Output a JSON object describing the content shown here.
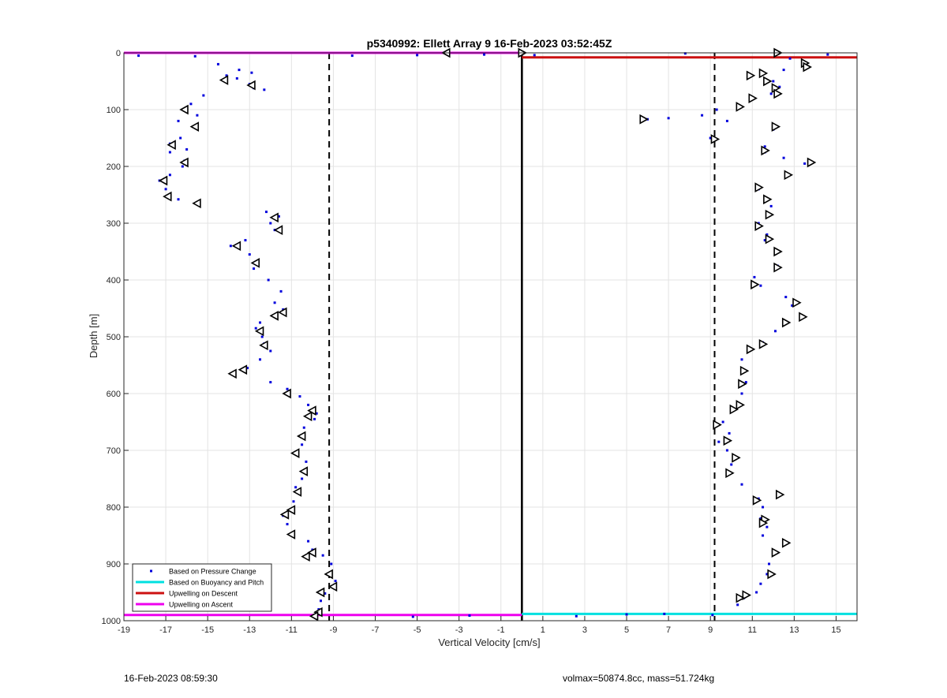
{
  "footer": {
    "left": "16-Feb-2023 08:59:30",
    "right": "volmax=50874.8cc, mass=51.724kg"
  },
  "colors": {
    "pressure": "#0000dd",
    "buoyancy": "#00e0e0",
    "descent": "#cc1111",
    "ascent": "#ee00ee",
    "grid": "#e3e3e3",
    "axis": "#262626"
  },
  "chart_data": {
    "type": "scatter",
    "title": "p5340992: Ellett Array 9 16-Feb-2023 03:52:45Z",
    "xlabel": "Vertical Velocity [cm/s]",
    "ylabel": "Depth [m]",
    "xlim": [
      -19,
      16
    ],
    "ylim": [
      0,
      1000
    ],
    "y_reversed": true,
    "grid": true,
    "x_ticks": [
      -19,
      -17,
      -15,
      -13,
      -11,
      -9,
      -7,
      -5,
      -3,
      -1,
      1,
      3,
      5,
      7,
      9,
      11,
      13,
      15
    ],
    "y_ticks": [
      0,
      100,
      200,
      300,
      400,
      500,
      600,
      700,
      800,
      900,
      1000
    ],
    "legend": {
      "placement": "bottom-left",
      "entries": [
        {
          "label": "Based on Pressure Change",
          "color": "#0000dd",
          "style": "dot"
        },
        {
          "label": "Based on Buoyancy and Pitch",
          "color": "#00e0e0",
          "style": "line"
        },
        {
          "label": "Upwelling on Descent",
          "color": "#cc1111",
          "style": "line"
        },
        {
          "label": "Upwelling on Ascent",
          "color": "#ee00ee",
          "style": "line"
        }
      ]
    },
    "reference_lines": [
      {
        "x": -9.2,
        "style": "dashed"
      },
      {
        "x": 9.2,
        "style": "dashed"
      },
      {
        "x": 0,
        "style": "solid"
      }
    ],
    "upwelling_lines": [
      {
        "name": "Upwelling on Ascent",
        "depth": 0,
        "x": [
          -19,
          0
        ]
      },
      {
        "name": "Upwelling on Descent",
        "depth": 8,
        "x": [
          0,
          16
        ]
      },
      {
        "name": "Upwelling on Ascent",
        "depth": 990,
        "x": [
          -19,
          0
        ]
      },
      {
        "name": "Based on Buoyancy and Pitch",
        "depth": 988,
        "x": [
          0,
          16
        ]
      }
    ],
    "series": [
      {
        "name": "Based on Pressure Change",
        "points": [
          [
            -14.1,
            40
          ],
          [
            -14.2,
            50
          ],
          [
            -13.5,
            30
          ],
          [
            -13.0,
            55
          ],
          [
            -12.8,
            62
          ],
          [
            -13.6,
            45
          ],
          [
            -14.5,
            20
          ],
          [
            -12.3,
            65
          ],
          [
            -12.9,
            35
          ],
          [
            -15.2,
            75
          ],
          [
            -15.8,
            90
          ],
          [
            -16.0,
            100
          ],
          [
            -15.5,
            110
          ],
          [
            -16.4,
            120
          ],
          [
            -15.6,
            130
          ],
          [
            -16.3,
            150
          ],
          [
            -16.8,
            160
          ],
          [
            -16.0,
            170
          ],
          [
            -16.8,
            175
          ],
          [
            -16.1,
            190
          ],
          [
            -16.2,
            200
          ],
          [
            -16.8,
            215
          ],
          [
            -17.3,
            225
          ],
          [
            -17.0,
            240
          ],
          [
            -16.9,
            252
          ],
          [
            -16.4,
            258
          ],
          [
            -15.5,
            265
          ],
          [
            -12.2,
            280
          ],
          [
            -11.6,
            288
          ],
          [
            -12.0,
            300
          ],
          [
            -11.8,
            312
          ],
          [
            -13.2,
            330
          ],
          [
            -13.9,
            340
          ],
          [
            -13.0,
            355
          ],
          [
            -12.7,
            368
          ],
          [
            -12.8,
            380
          ],
          [
            -12.1,
            400
          ],
          [
            -11.5,
            420
          ],
          [
            -11.8,
            440
          ],
          [
            -11.4,
            452
          ],
          [
            -11.8,
            462
          ],
          [
            -12.5,
            475
          ],
          [
            -12.7,
            485
          ],
          [
            -12.4,
            500
          ],
          [
            -12.3,
            512
          ],
          [
            -12.0,
            525
          ],
          [
            -12.5,
            540
          ],
          [
            -13.1,
            555
          ],
          [
            -13.7,
            565
          ],
          [
            -12.0,
            580
          ],
          [
            -11.2,
            592
          ],
          [
            -10.6,
            605
          ],
          [
            -10.2,
            620
          ],
          [
            -9.8,
            635
          ],
          [
            -9.9,
            645
          ],
          [
            -10.4,
            660
          ],
          [
            -10.5,
            675
          ],
          [
            -10.5,
            690
          ],
          [
            -10.7,
            705
          ],
          [
            -10.3,
            720
          ],
          [
            -10.3,
            735
          ],
          [
            -10.5,
            750
          ],
          [
            -10.8,
            765
          ],
          [
            -10.6,
            775
          ],
          [
            -10.9,
            790
          ],
          [
            -11.0,
            805
          ],
          [
            -11.4,
            815
          ],
          [
            -11.2,
            830
          ],
          [
            -10.9,
            845
          ],
          [
            -10.2,
            860
          ],
          [
            -10.0,
            875
          ],
          [
            -9.5,
            885
          ],
          [
            -9.1,
            900
          ],
          [
            -9.1,
            915
          ],
          [
            -8.9,
            930
          ],
          [
            -9.0,
            940
          ],
          [
            -9.4,
            952
          ],
          [
            -9.6,
            965
          ],
          [
            -9.7,
            980
          ],
          [
            -9.8,
            990
          ],
          [
            12.8,
            10
          ],
          [
            13.6,
            18
          ],
          [
            12.5,
            30
          ],
          [
            11.4,
            38
          ],
          [
            12.0,
            50
          ],
          [
            12.3,
            60
          ],
          [
            11.9,
            72
          ],
          [
            11.0,
            82
          ],
          [
            10.4,
            95
          ],
          [
            9.3,
            100
          ],
          [
            8.6,
            110
          ],
          [
            7.0,
            115
          ],
          [
            6.0,
            117
          ],
          [
            9.8,
            120
          ],
          [
            9.0,
            150
          ],
          [
            12.0,
            135
          ],
          [
            11.6,
            165
          ],
          [
            11.6,
            175
          ],
          [
            12.5,
            185
          ],
          [
            13.5,
            195
          ],
          [
            12.6,
            215
          ],
          [
            11.3,
            240
          ],
          [
            11.6,
            255
          ],
          [
            11.9,
            270
          ],
          [
            11.8,
            285
          ],
          [
            11.3,
            300
          ],
          [
            11.7,
            320
          ],
          [
            11.6,
            330
          ],
          [
            12.1,
            350
          ],
          [
            12.2,
            375
          ],
          [
            11.1,
            395
          ],
          [
            11.4,
            410
          ],
          [
            12.6,
            430
          ],
          [
            12.9,
            445
          ],
          [
            13.3,
            462
          ],
          [
            12.6,
            475
          ],
          [
            12.1,
            490
          ],
          [
            11.5,
            510
          ],
          [
            10.8,
            520
          ],
          [
            10.5,
            540
          ],
          [
            10.6,
            560
          ],
          [
            10.7,
            580
          ],
          [
            10.5,
            600
          ],
          [
            10.0,
            625
          ],
          [
            9.6,
            650
          ],
          [
            9.9,
            670
          ],
          [
            9.4,
            685
          ],
          [
            9.8,
            700
          ],
          [
            10.2,
            715
          ],
          [
            10.0,
            725
          ],
          [
            9.9,
            740
          ],
          [
            10.5,
            760
          ],
          [
            11.3,
            785
          ],
          [
            11.5,
            800
          ],
          [
            11.4,
            820
          ],
          [
            11.7,
            835
          ],
          [
            11.5,
            850
          ],
          [
            12.6,
            865
          ],
          [
            12.2,
            880
          ],
          [
            11.8,
            900
          ],
          [
            11.7,
            918
          ],
          [
            11.4,
            935
          ],
          [
            11.2,
            950
          ],
          [
            10.6,
            960
          ],
          [
            10.3,
            972
          ],
          [
            -18.3,
            5
          ],
          [
            -15.6,
            6
          ],
          [
            -8.1,
            5
          ],
          [
            -5.0,
            4
          ],
          [
            -1.8,
            3
          ],
          [
            0.6,
            4
          ],
          [
            7.8,
            1
          ],
          [
            14.6,
            3
          ],
          [
            -5.2,
            993
          ],
          [
            -2.5,
            991
          ],
          [
            2.6,
            992
          ],
          [
            5.0,
            989
          ],
          [
            6.8,
            988
          ],
          [
            9.1,
            990
          ]
        ]
      },
      {
        "name": "Averaged velocity markers",
        "points": [
          [
            -14.2,
            48
          ],
          [
            -12.9,
            57
          ],
          [
            -16.1,
            100
          ],
          [
            -15.6,
            130
          ],
          [
            -16.7,
            162
          ],
          [
            -16.1,
            193
          ],
          [
            -17.1,
            225
          ],
          [
            -16.9,
            253
          ],
          [
            -15.5,
            265
          ],
          [
            -11.8,
            290
          ],
          [
            -11.6,
            312
          ],
          [
            -13.6,
            340
          ],
          [
            -12.7,
            370
          ],
          [
            -11.4,
            457
          ],
          [
            -11.8,
            463
          ],
          [
            -12.5,
            490
          ],
          [
            -12.3,
            515
          ],
          [
            -13.3,
            558
          ],
          [
            -13.8,
            565
          ],
          [
            -11.2,
            600
          ],
          [
            -10.0,
            630
          ],
          [
            -10.2,
            640
          ],
          [
            -10.5,
            675
          ],
          [
            -10.8,
            705
          ],
          [
            -10.4,
            737
          ],
          [
            -10.7,
            773
          ],
          [
            -11.0,
            805
          ],
          [
            -11.3,
            813
          ],
          [
            -11.0,
            848
          ],
          [
            -10.0,
            880
          ],
          [
            -10.3,
            887
          ],
          [
            -9.2,
            918
          ],
          [
            -9.0,
            940
          ],
          [
            -9.6,
            950
          ],
          [
            -9.7,
            985
          ],
          [
            -9.9,
            992
          ],
          [
            -3.6,
            0
          ],
          [
            0.0,
            -1
          ],
          [
            12.2,
            0
          ],
          [
            13.5,
            18
          ],
          [
            13.6,
            25
          ],
          [
            10.9,
            40
          ],
          [
            11.5,
            36
          ],
          [
            11.7,
            50
          ],
          [
            12.1,
            62
          ],
          [
            12.2,
            72
          ],
          [
            11.0,
            80
          ],
          [
            10.4,
            95
          ],
          [
            5.8,
            117
          ],
          [
            12.1,
            130
          ],
          [
            9.2,
            152
          ],
          [
            11.6,
            172
          ],
          [
            13.8,
            193
          ],
          [
            12.7,
            215
          ],
          [
            11.3,
            237
          ],
          [
            11.7,
            258
          ],
          [
            11.8,
            285
          ],
          [
            11.3,
            305
          ],
          [
            11.8,
            328
          ],
          [
            12.2,
            350
          ],
          [
            12.2,
            378
          ],
          [
            11.1,
            408
          ],
          [
            13.1,
            440
          ],
          [
            13.4,
            465
          ],
          [
            12.6,
            475
          ],
          [
            11.5,
            513
          ],
          [
            10.9,
            522
          ],
          [
            10.6,
            560
          ],
          [
            10.5,
            583
          ],
          [
            10.4,
            620
          ],
          [
            10.1,
            628
          ],
          [
            9.3,
            655
          ],
          [
            9.8,
            683
          ],
          [
            10.2,
            713
          ],
          [
            9.9,
            740
          ],
          [
            11.2,
            788
          ],
          [
            12.3,
            778
          ],
          [
            11.6,
            822
          ],
          [
            11.5,
            828
          ],
          [
            12.6,
            863
          ],
          [
            12.1,
            880
          ],
          [
            11.9,
            918
          ],
          [
            10.7,
            955
          ],
          [
            10.4,
            960
          ]
        ]
      }
    ]
  }
}
